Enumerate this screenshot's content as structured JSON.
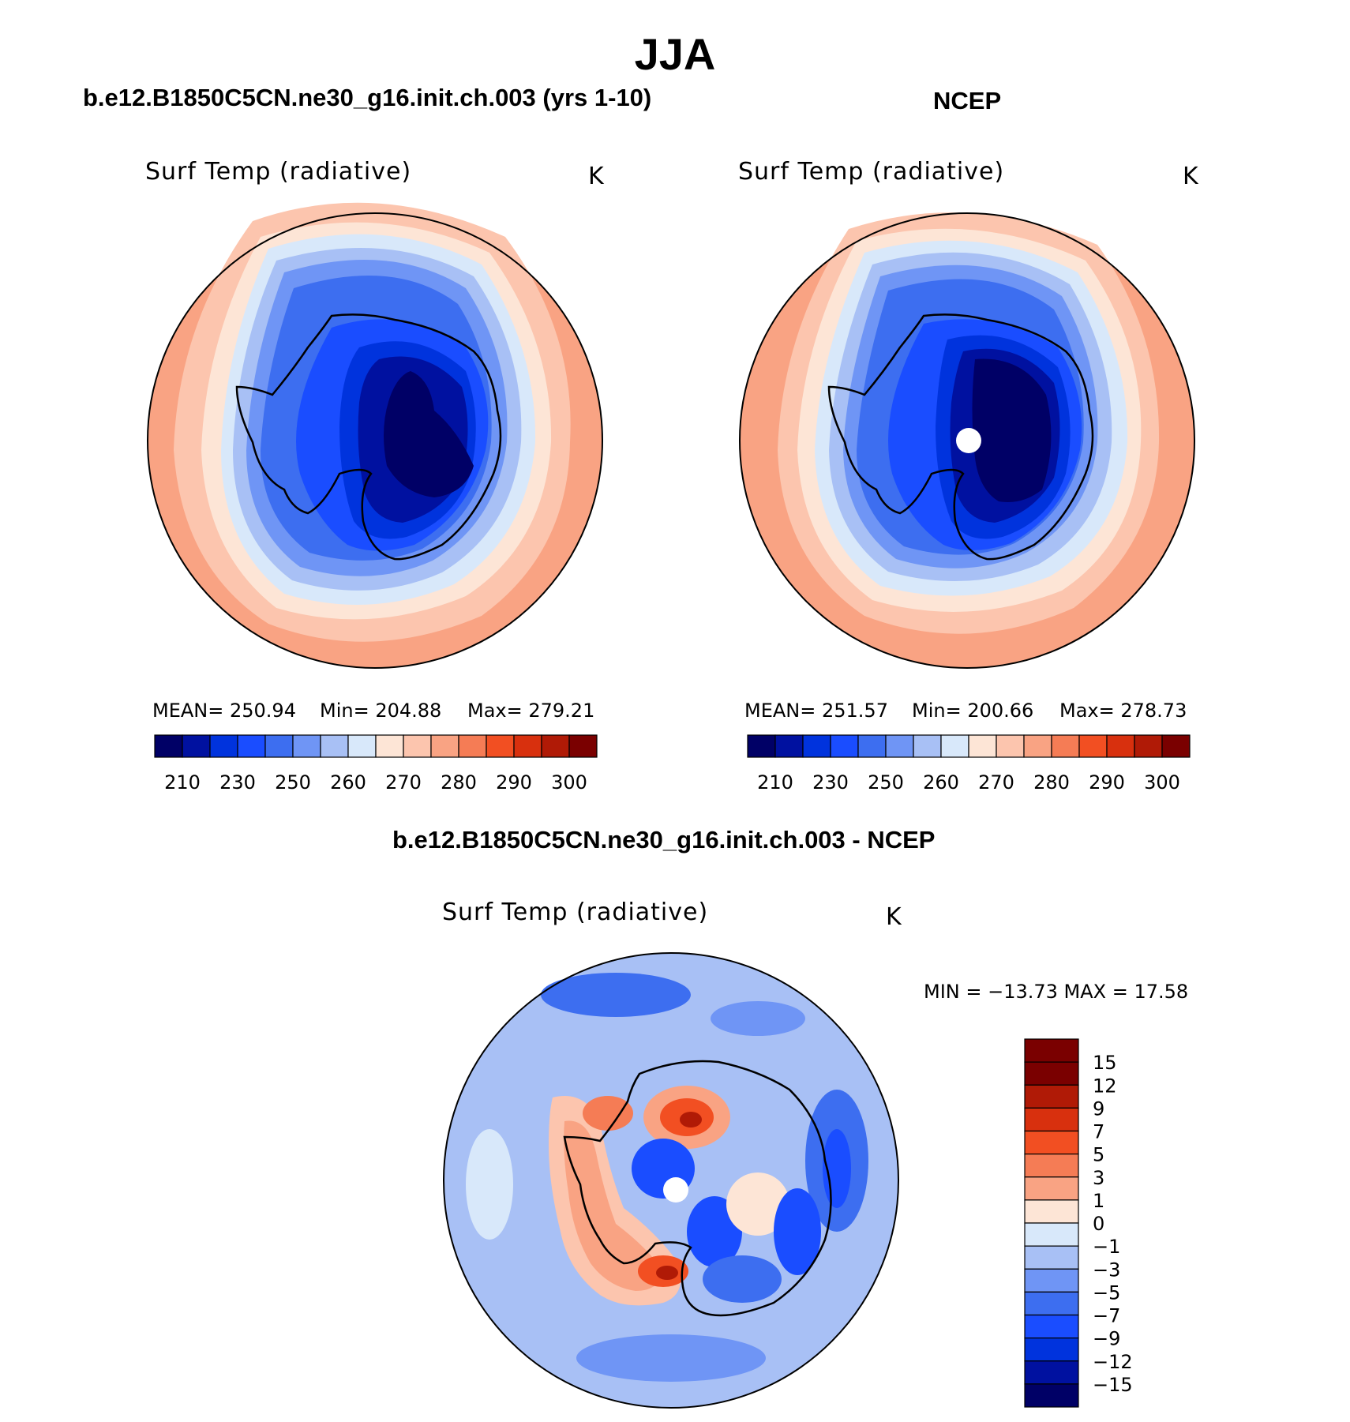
{
  "title": "JJA",
  "panels": [
    {
      "title": "b.e12.B1850C5CN.ne30_g16.init.ch.003 (yrs 1-10)",
      "variable": "Surf Temp (radiative)",
      "units": "K",
      "stats": {
        "mean": "MEAN= 250.94",
        "min": "Min= 204.88",
        "max": "Max= 279.21"
      }
    },
    {
      "title": "NCEP",
      "variable": "Surf Temp (radiative)",
      "units": "K",
      "stats": {
        "mean": "MEAN= 251.57",
        "min": "Min= 200.66",
        "max": "Max= 278.73"
      }
    },
    {
      "title": "b.e12.B1850C5CN.ne30_g16.init.ch.003 - NCEP",
      "variable": "Surf Temp (radiative)",
      "units": "K",
      "stats": {
        "minmax": "MIN = −13.73 MAX =   17.58"
      }
    }
  ],
  "colorbar_abs": {
    "colors": [
      "#000066",
      "#0011a0",
      "#0033dd",
      "#1a4dff",
      "#3d6ef0",
      "#6f95f5",
      "#a8c0f5",
      "#d8e8fa",
      "#fde5d6",
      "#fcc5ae",
      "#f9a383",
      "#f57c55",
      "#f24f22",
      "#d8300e",
      "#b01a06",
      "#7a0000"
    ],
    "labels": [
      "210",
      "230",
      "250",
      "260",
      "270",
      "280",
      "290",
      "300"
    ]
  },
  "colorbar_diff": {
    "colors": [
      "#7a0000",
      "#b01a06",
      "#d8300e",
      "#f24f22",
      "#f57c55",
      "#f9a383",
      "#fde5d6",
      "#d8e8fa",
      "#a8c0f5",
      "#6f95f5",
      "#3d6ef0",
      "#1a4dff",
      "#0033dd",
      "#0011a0",
      "#000066"
    ],
    "labels": [
      "15",
      "12",
      "9",
      "7",
      "5",
      "3",
      "1",
      "0",
      "−1",
      "−3",
      "−5",
      "−7",
      "−9",
      "−12",
      "−15"
    ]
  }
}
